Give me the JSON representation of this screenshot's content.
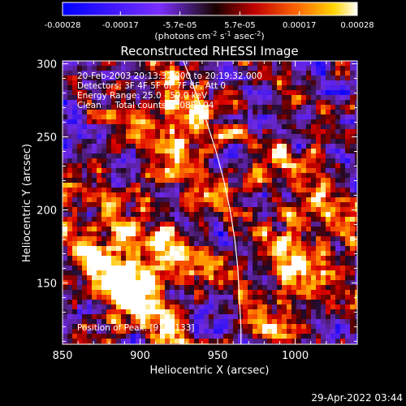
{
  "chart_data": {
    "type": "heatmap",
    "title": "Reconstructed RHESSI Image",
    "xlabel": "Heliocentric X (arcsec)",
    "ylabel": "Heliocentric Y (arcsec)",
    "xlim": [
      850,
      1040
    ],
    "ylim": [
      108,
      302
    ],
    "x_ticks": [
      "850",
      "900",
      "950",
      "1000"
    ],
    "x_tick_values": [
      850,
      900,
      950,
      1000
    ],
    "y_ticks": [
      "150",
      "200",
      "250",
      "300"
    ],
    "y_tick_values": [
      150,
      200,
      250,
      300
    ],
    "colorbar": {
      "min": -0.00028,
      "max": 0.00028,
      "tick_labels": [
        "-0.00028",
        "-0.00017",
        "-5.7e-05",
        "5.7e-05",
        "0.00017",
        "0.00028"
      ],
      "tick_values": [
        -0.00028,
        -0.00017,
        -5.7e-05,
        5.7e-05,
        0.00017,
        0.00028
      ],
      "unit_label": "(photons cm",
      "unit_exp1": "-2",
      "unit_mid": " s",
      "unit_exp2": "-1",
      "unit_mid2": " asec",
      "unit_exp3": "-2",
      "unit_end": ")",
      "colormap": [
        "#0000ff",
        "#7b2fff",
        "#3a1a50",
        "#1a0000",
        "#ff0000",
        "#ffa500",
        "#ffffff"
      ]
    },
    "limb_curve": [
      [
        928,
        302
      ],
      [
        936,
        280
      ],
      [
        943,
        260
      ],
      [
        949,
        240
      ],
      [
        954,
        220
      ],
      [
        958,
        200
      ],
      [
        961,
        180
      ],
      [
        963,
        160
      ],
      [
        964,
        140
      ],
      [
        965,
        120
      ],
      [
        965,
        108
      ]
    ],
    "bright_sources": [
      {
        "x": 920,
        "y": 262,
        "strength": 1.0
      },
      {
        "x": 895,
        "y": 150,
        "strength": 1.0
      },
      {
        "x": 930,
        "y": 200,
        "strength": 0.6
      },
      {
        "x": 1000,
        "y": 225,
        "strength": 0.6
      },
      {
        "x": 1015,
        "y": 175,
        "strength": 0.55
      },
      {
        "x": 990,
        "y": 140,
        "strength": 0.45
      }
    ]
  },
  "annotations": {
    "line1": "20-Feb-2003 20:13:32.000 to 20:19:32.000",
    "line2": "Detectors: 3F 4F 5F 6F 7F 8F, Att 0",
    "line3": "Energy Range: 25.0 - 50.0 keV",
    "line4": "Clean     Total counts: 1.08E+04",
    "peak": "Position of Peak: [910, 133]"
  },
  "timestamp": "29-Apr-2022 03:44"
}
